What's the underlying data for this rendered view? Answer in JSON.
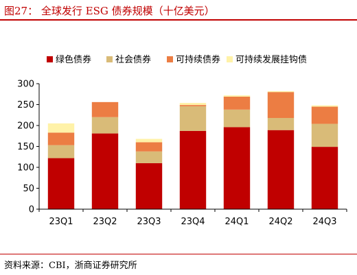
{
  "title": "图27： 全球发行 ESG 债券规模（十亿美元）",
  "source": "资料来源：CBI，浙商证券研究所",
  "chart_data": {
    "type": "bar",
    "stacked": true,
    "categories": [
      "23Q1",
      "23Q2",
      "23Q3",
      "23Q4",
      "24Q1",
      "24Q2",
      "24Q3"
    ],
    "series": [
      {
        "name": "绿色债券",
        "color": "#c00000",
        "values": [
          122,
          181,
          110,
          187,
          196,
          189,
          149
        ]
      },
      {
        "name": "社会债券",
        "color": "#d9bb78",
        "values": [
          31,
          39,
          28,
          59,
          42,
          29,
          55
        ]
      },
      {
        "name": "可持续债券",
        "color": "#ec7d43",
        "values": [
          30,
          36,
          22,
          3,
          31,
          62,
          41
        ]
      },
      {
        "name": "可持续发展挂钩债",
        "color": "#fff2a8",
        "values": [
          22,
          0,
          8,
          5,
          3,
          2,
          3
        ]
      }
    ],
    "yticks": [
      "0",
      "50",
      "100",
      "150",
      "200",
      "250",
      "300"
    ],
    "ylim": [
      0,
      300
    ],
    "grid": false,
    "legend": "top"
  }
}
